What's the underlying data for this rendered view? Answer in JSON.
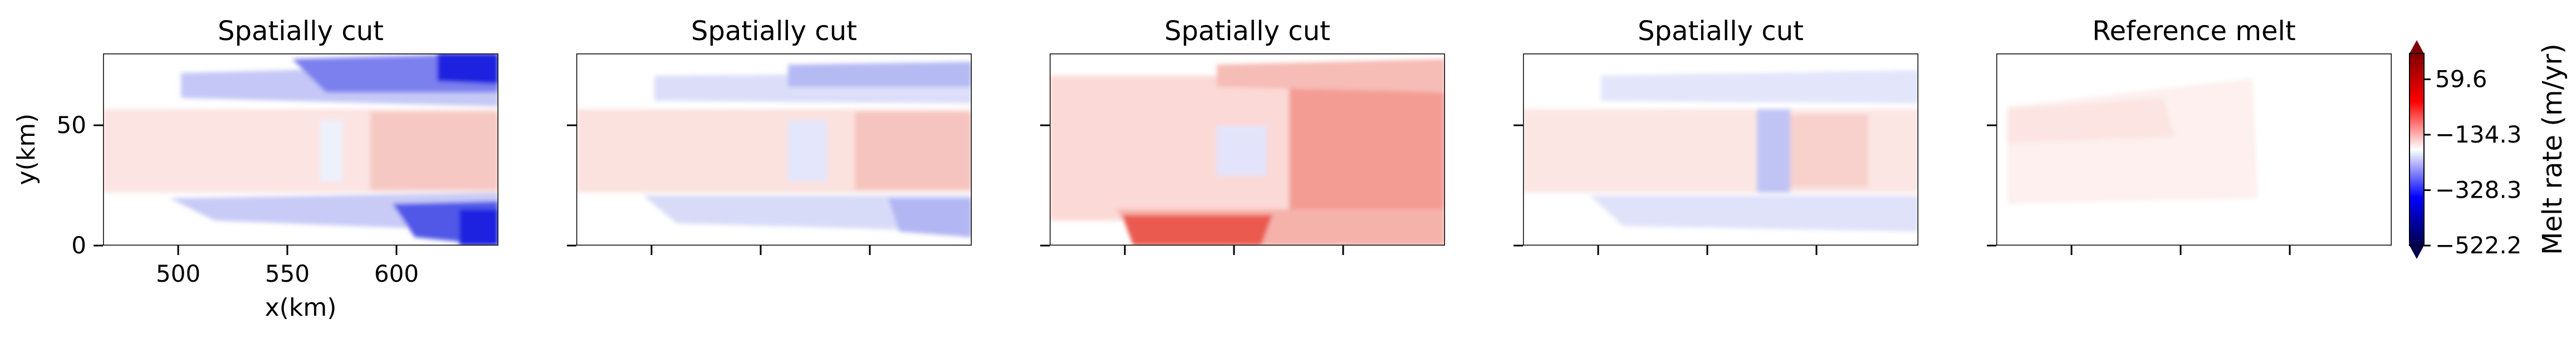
{
  "figure": {
    "colorbar": {
      "label": "Melt rate (m/yr)",
      "ticks": [
        "59.6",
        "−134.3",
        "−328.3",
        "−522.2"
      ],
      "tick_values": [
        59.6,
        -134.3,
        -328.3,
        -522.2
      ],
      "range": [
        -522.2,
        150
      ],
      "colormap": "seismic",
      "extend": "both"
    },
    "panels": [
      {
        "title": "Spatially cut",
        "xlabel": "x(km)",
        "ylabel": "y(km)",
        "xticks": [
          "500",
          "550",
          "600"
        ],
        "yticks": [
          "0",
          "50"
        ]
      },
      {
        "title": "Spatially cut",
        "xlabel": "",
        "ylabel": "",
        "xticks": [
          "",
          "",
          ""
        ],
        "yticks": [
          "",
          ""
        ]
      },
      {
        "title": "Spatially cut",
        "xlabel": "",
        "ylabel": "",
        "xticks": [
          "",
          "",
          ""
        ],
        "yticks": [
          "",
          ""
        ]
      },
      {
        "title": "Spatially cut",
        "xlabel": "",
        "ylabel": "",
        "xticks": [
          "",
          "",
          ""
        ],
        "yticks": [
          "",
          ""
        ]
      },
      {
        "title": "Reference melt",
        "xlabel": "",
        "ylabel": "",
        "xticks": [
          "",
          "",
          ""
        ],
        "yticks": [
          "",
          ""
        ]
      }
    ]
  },
  "chart_data": [
    {
      "type": "heatmap",
      "title": "Spatially cut",
      "xlabel": "x(km)",
      "ylabel": "y(km)",
      "xlim": [
        460,
        640
      ],
      "ylim": [
        0,
        80
      ],
      "x_ticks": [
        500,
        550,
        600
      ],
      "y_ticks": [
        0,
        50
      ],
      "variant": "strong blue negative melt along upper and lower grounding lines, weak red in central ice shelf"
    },
    {
      "title": "Spatially cut",
      "type": "heatmap",
      "xlim": [
        460,
        640
      ],
      "ylim": [
        0,
        80
      ],
      "variant": "weak blue along margins, light red centre"
    },
    {
      "title": "Spatially cut",
      "type": "heatmap",
      "xlim": [
        460,
        640
      ],
      "ylim": [
        0,
        80
      ],
      "variant": "predominantly red positive melt, strongest near right and lower edge"
    },
    {
      "title": "Spatially cut",
      "type": "heatmap",
      "xlim": [
        460,
        640
      ],
      "ylim": [
        0,
        80
      ],
      "variant": "light blue margins, faint red centre"
    },
    {
      "title": "Reference melt",
      "type": "heatmap",
      "xlim": [
        460,
        640
      ],
      "ylim": [
        0,
        80
      ],
      "variant": "faint red only in ice-shelf region, rest near zero"
    }
  ]
}
